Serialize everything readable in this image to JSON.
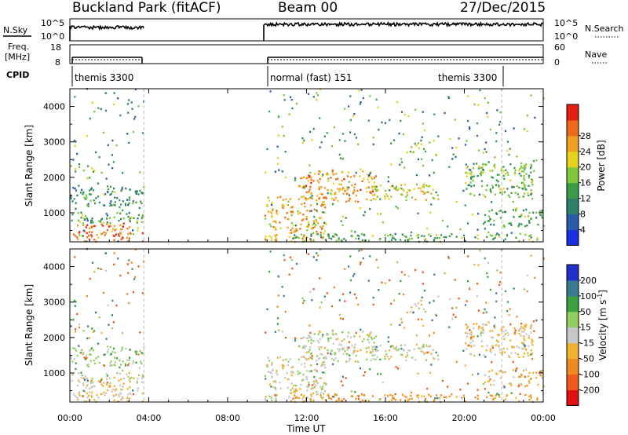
{
  "header": {
    "site": "Buckland Park (fitACF)",
    "beam": "Beam 00",
    "date": "27/Dec/2015"
  },
  "side_labels": {
    "nsky": "N.Sky",
    "freq_line1": "Freq.",
    "freq_line2": "[MHz]",
    "cpid": "CPID",
    "nsearch": "N.Search",
    "nave": "Nave"
  },
  "mini_axes": {
    "noise_left_ticks": [
      "10^5",
      "10^0"
    ],
    "noise_right_ticks": [
      "10^5",
      "10^0"
    ],
    "freq_left_ticks": [
      "18",
      "8"
    ],
    "nave_right_ticks": [
      "60",
      "0"
    ]
  },
  "cpid_labels": [
    {
      "text": "themis 3300",
      "start_hour": 0.0
    },
    {
      "text": "normal (fast) 151",
      "start_hour": 9.83
    },
    {
      "text": "themis 3300",
      "start_hour": 19.6
    }
  ],
  "data_gaps_hours": [
    [
      3.75,
      9.83
    ]
  ],
  "x_axis": {
    "title": "Time UT",
    "range_hours": [
      0,
      24
    ],
    "tick_labels": [
      "00:00",
      "04:00",
      "08:00",
      "12:00",
      "16:00",
      "20:00",
      "00:00"
    ]
  },
  "power_panel": {
    "ylabel": "Slant Range [km]",
    "yticks": [
      "1000",
      "2000",
      "3000",
      "4000"
    ],
    "yrange_km": [
      180,
      4500
    ],
    "colorbar": {
      "label": "Power [dB]",
      "ticks": [
        "4",
        "8",
        "12",
        "16",
        "20",
        "24",
        "28"
      ],
      "range": [
        0,
        32
      ],
      "colors": [
        "#1a2fe0",
        "#2a5aa8",
        "#2f7f6a",
        "#3a9c48",
        "#7cc83a",
        "#e6d020",
        "#f0a020",
        "#ee6a1a",
        "#e02010"
      ]
    }
  },
  "velocity_panel": {
    "ylabel": "Slant Range [km]",
    "yticks": [
      "1000",
      "2000",
      "3000",
      "4000"
    ],
    "yrange_km": [
      180,
      4500
    ],
    "colorbar": {
      "label_main": "Velocity [m s",
      "label_sup": "-1",
      "label_end": "]",
      "ticks": [
        "-200",
        "-100",
        "-50",
        "-15",
        "15",
        "50",
        "100",
        "200"
      ],
      "colors": [
        "#e01010",
        "#ee5a1a",
        "#f08a20",
        "#f0b030",
        "#c8c8c8",
        "#90d060",
        "#3aa040",
        "#3a7a90",
        "#2030c8"
      ]
    }
  },
  "chart_data": {
    "type": "heatmap",
    "title": "Buckland Park (fitACF)",
    "xlabel": "Time UT",
    "ylabel": "Slant Range [km]",
    "x_range_hours": [
      0,
      24
    ],
    "y_range_km": [
      180,
      4500
    ],
    "panels": [
      "Power [dB]",
      "Velocity [m s-1]"
    ],
    "backscatter_regions": [
      {
        "t0": 0.0,
        "t1": 3.75,
        "r0": 180,
        "r1": 700,
        "power_db": 26,
        "velocity": -20
      },
      {
        "t0": 0.0,
        "t1": 3.75,
        "r0": 700,
        "r1": 1000,
        "power_db": 14,
        "velocity": 0
      },
      {
        "t0": 0.0,
        "t1": 3.75,
        "r0": 1200,
        "r1": 1750,
        "power_db": 10,
        "velocity": 30
      },
      {
        "t0": 9.83,
        "t1": 13.0,
        "r0": 180,
        "r1": 1500,
        "power_db": 22,
        "velocity": 0
      },
      {
        "t0": 11.5,
        "t1": 15.5,
        "r0": 1300,
        "r1": 2200,
        "power_db": 24,
        "velocity": 10
      },
      {
        "t0": 15.0,
        "t1": 18.8,
        "r0": 1350,
        "r1": 1800,
        "power_db": 20,
        "velocity": 0
      },
      {
        "t0": 17.0,
        "t1": 18.0,
        "r0": 2700,
        "r1": 3000,
        "power_db": 16,
        "velocity": 0
      },
      {
        "t0": 20.0,
        "t1": 23.5,
        "r0": 1400,
        "r1": 2400,
        "power_db": 14,
        "velocity": -20
      },
      {
        "t0": 11.0,
        "t1": 24.0,
        "r0": 180,
        "r1": 400,
        "power_db": 14,
        "velocity": -60
      },
      {
        "t0": 21.0,
        "t1": 24.0,
        "r0": 600,
        "r1": 1100,
        "power_db": 12,
        "velocity": -30
      }
    ]
  }
}
